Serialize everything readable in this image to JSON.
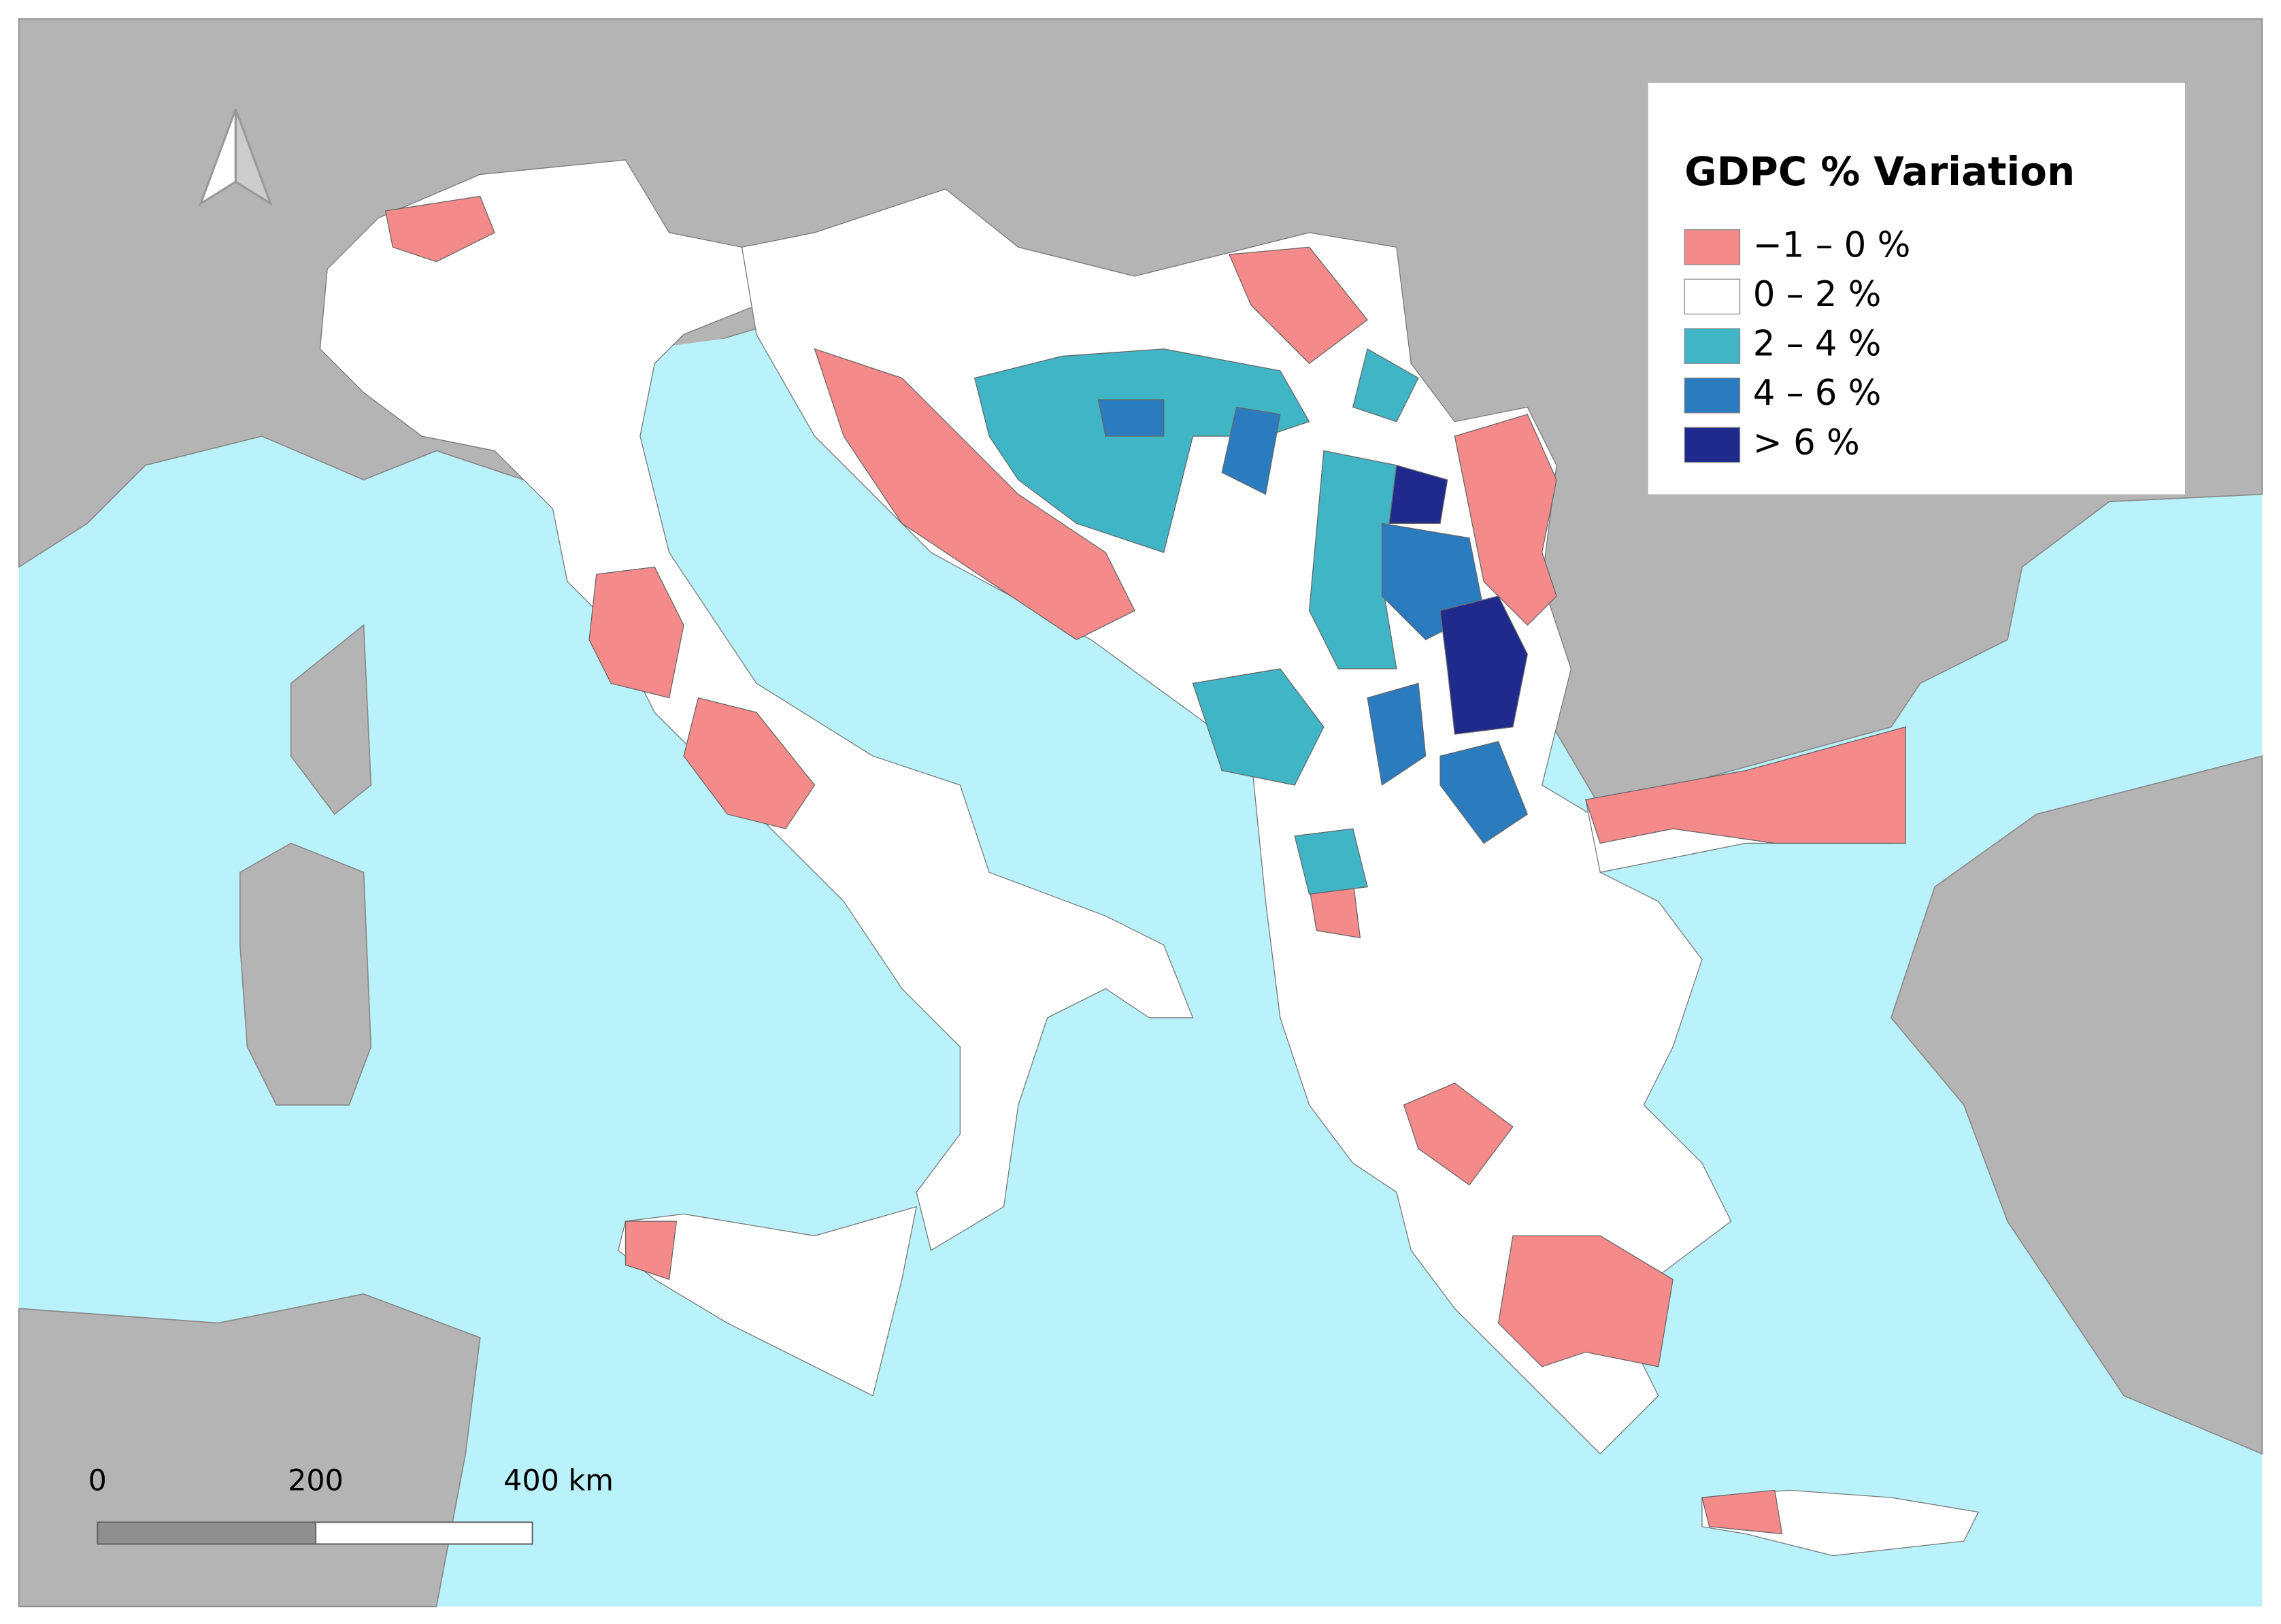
{
  "legend": {
    "title": "GDPC % Variation",
    "items": [
      {
        "label": "−1 – 0 %",
        "color": "#f58a8a"
      },
      {
        "label": "0 – 2 %",
        "color": "#ffffff"
      },
      {
        "label": "2 – 4 %",
        "color": "#3fb5c6"
      },
      {
        "label": "4 – 6 %",
        "color": "#2b7bbf"
      },
      {
        "label": "> 6 %",
        "color": "#1f2a8c"
      }
    ]
  },
  "scale_bar": {
    "labels": [
      "0",
      "200",
      "400 km"
    ]
  }
}
